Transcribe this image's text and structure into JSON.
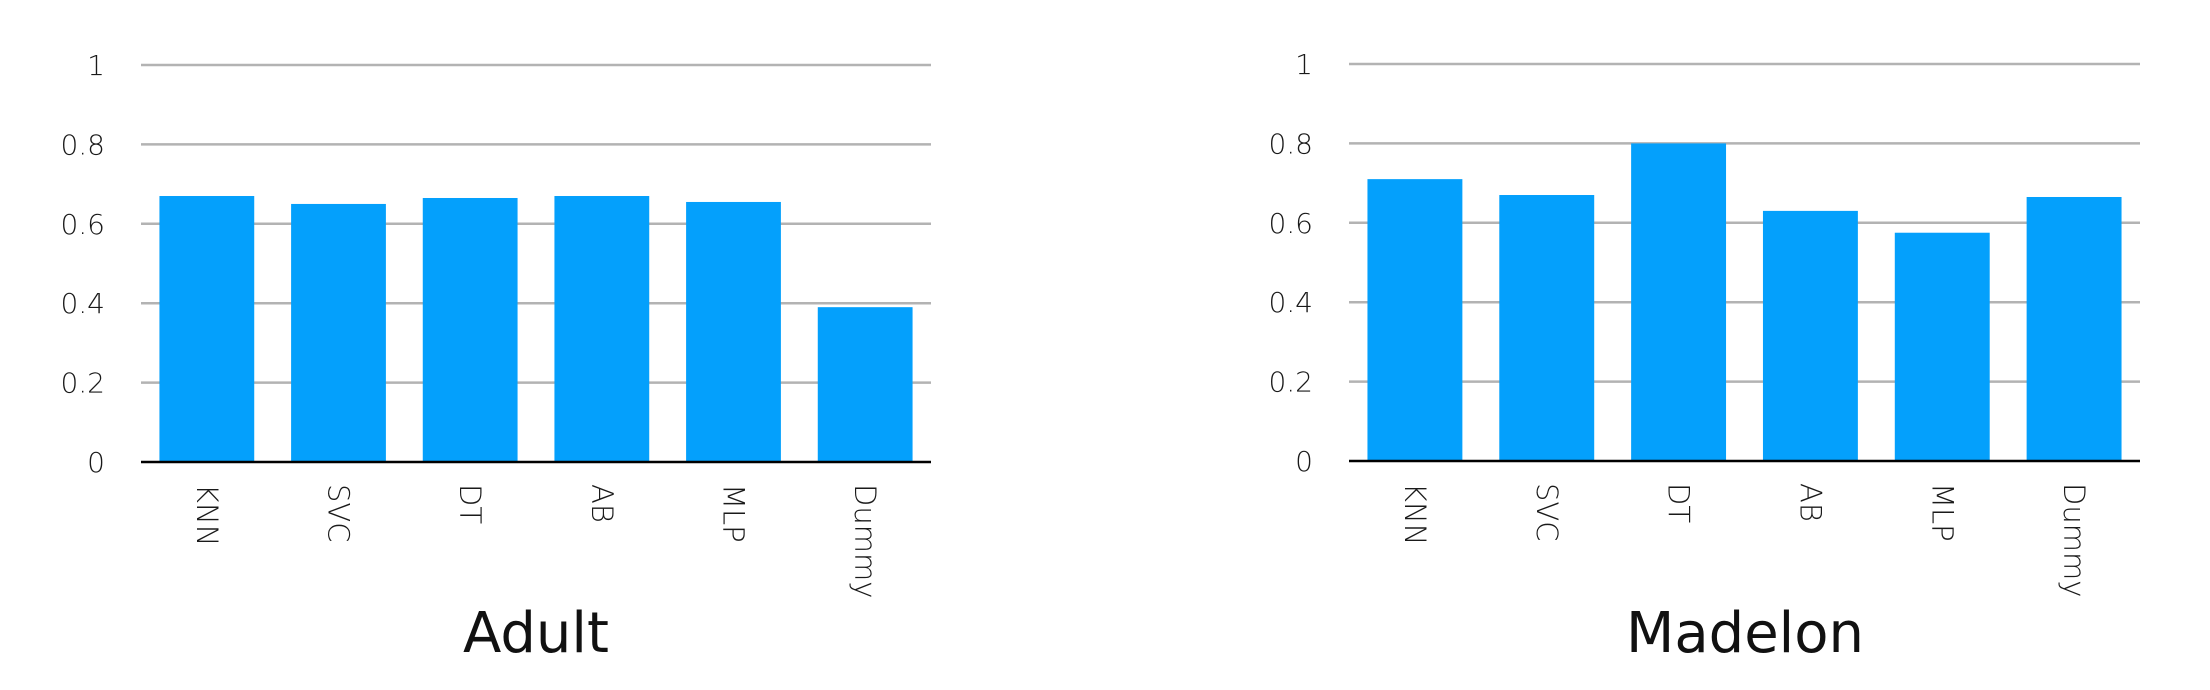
{
  "chart_data": [
    {
      "type": "bar",
      "title": "Adult",
      "categories": [
        "KNN",
        "SVC",
        "DT",
        "AB",
        "MLP",
        "Dummy"
      ],
      "values": [
        0.67,
        0.65,
        0.665,
        0.67,
        0.655,
        0.39
      ],
      "xlabel": "",
      "ylabel": "",
      "ylim": [
        0,
        1
      ],
      "yticks": [
        "0",
        "0.2",
        "0.4",
        "0.6",
        "0.8",
        "1"
      ],
      "grid": true,
      "bar_color": "#04A0FC"
    },
    {
      "type": "bar",
      "title": "Madelon",
      "categories": [
        "KNN",
        "SVC",
        "DT",
        "AB",
        "MLP",
        "Dummy"
      ],
      "values": [
        0.71,
        0.67,
        0.8,
        0.63,
        0.575,
        0.665
      ],
      "xlabel": "",
      "ylabel": "",
      "ylim": [
        0,
        1
      ],
      "yticks": [
        "0",
        "0.2",
        "0.4",
        "0.6",
        "0.8",
        "1"
      ],
      "grid": true,
      "bar_color": "#04A0FC"
    }
  ]
}
